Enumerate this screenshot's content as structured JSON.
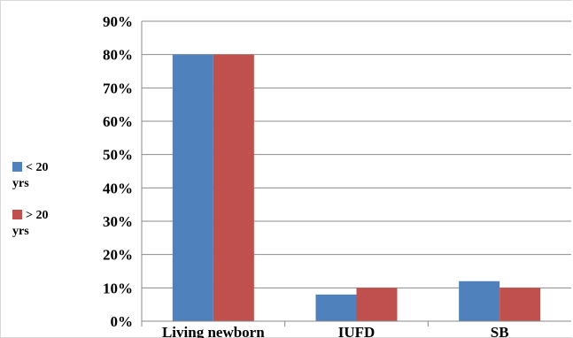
{
  "chart_data": {
    "type": "bar",
    "title": "",
    "xlabel": "",
    "ylabel": "",
    "categories": [
      "Living newborn",
      "IUFD",
      "SB"
    ],
    "series": [
      {
        "name": "< 20 yrs",
        "values": [
          80,
          8,
          12
        ],
        "color": "#4f81bd"
      },
      {
        "name": "> 20 yrs",
        "values": [
          80,
          10,
          10
        ],
        "color": "#c0504d"
      }
    ],
    "ylim": [
      0,
      90
    ],
    "y_ticks": [
      "0%",
      "10%",
      "20%",
      "30%",
      "40%",
      "50%",
      "60%",
      "70%",
      "80%",
      "90%"
    ],
    "y_unit": "%",
    "grid": true,
    "legend_position": "left"
  },
  "legend": {
    "items": [
      {
        "label_top": "< 20",
        "label_bottom": "yrs",
        "color": "#4f81bd"
      },
      {
        "label_top": "> 20",
        "label_bottom": "yrs",
        "color": "#c0504d"
      }
    ]
  }
}
